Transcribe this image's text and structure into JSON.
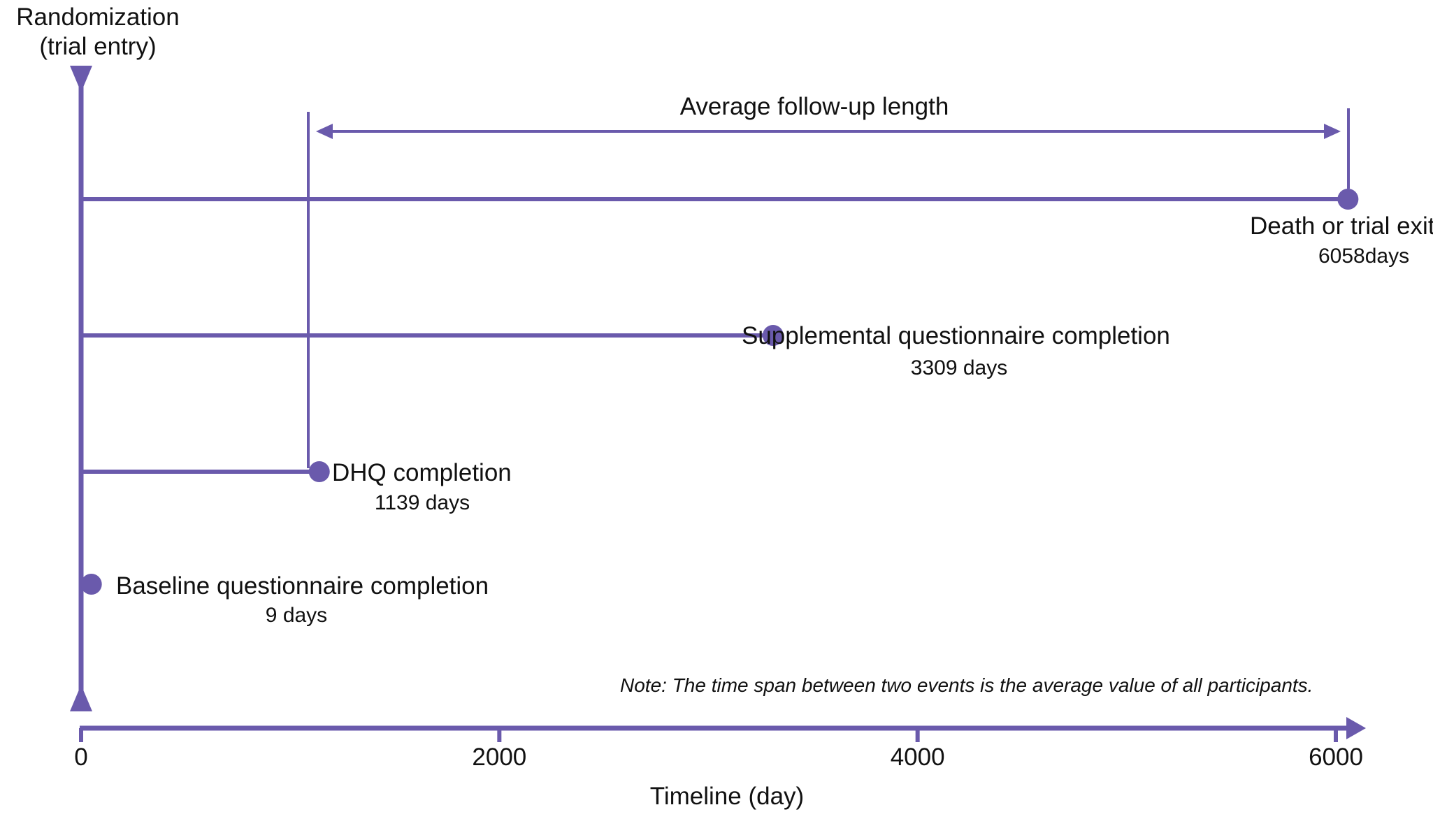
{
  "colors": {
    "primary": "#6a5aac",
    "text": "#111111",
    "background": "#ffffff"
  },
  "header": {
    "line1": "Randomization",
    "line2": "(trial entry)"
  },
  "span": {
    "label": "Average follow-up length"
  },
  "events": [
    {
      "id": "death",
      "label": "Death or trial exit",
      "days_num": "6058",
      "days_unit": "days",
      "days": 6058
    },
    {
      "id": "supplemental",
      "label": "Supplemental questionnaire completion",
      "days_text": "3309 days",
      "days": 3309
    },
    {
      "id": "dhq",
      "label": "DHQ completion",
      "days_text": "1139 days",
      "days": 1139
    },
    {
      "id": "baseline",
      "label": "Baseline questionnaire completion",
      "days_text": "9 days",
      "days": 9
    }
  ],
  "axis": {
    "title": "Timeline (day)",
    "ticks": [
      {
        "value": 0,
        "label": "0"
      },
      {
        "value": 2000,
        "label": "2000"
      },
      {
        "value": 4000,
        "label": "4000"
      },
      {
        "value": 6000,
        "label": "6000"
      }
    ]
  },
  "note": "Note: The time span between two events is the average value of all participants."
}
